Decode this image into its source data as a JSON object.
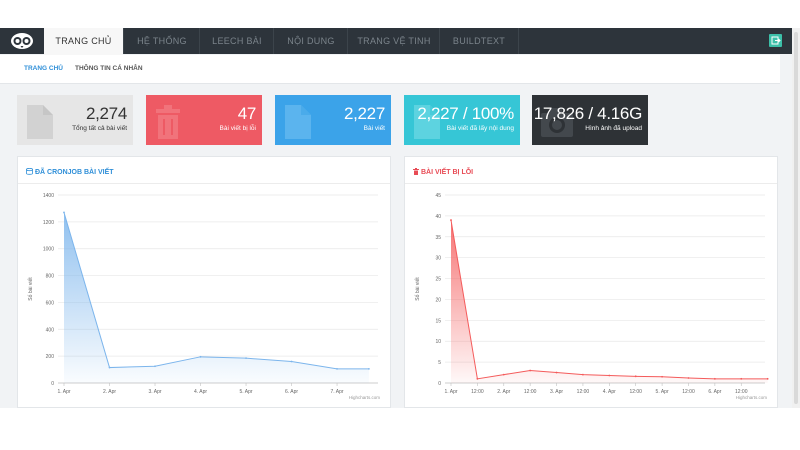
{
  "nav": {
    "tabs": [
      {
        "label": "TRANG CHỦ",
        "active": true
      },
      {
        "label": "HỆ THỐNG",
        "active": false
      },
      {
        "label": "LEECH BÀI",
        "active": false
      },
      {
        "label": "NỘI DUNG",
        "active": false
      },
      {
        "label": "TRANG VỆ TINH",
        "active": false
      },
      {
        "label": "BUILDTEXT",
        "active": false
      }
    ],
    "exit_icon": "logout-icon",
    "accent": "#3cbfa8"
  },
  "subnav": {
    "tabs": [
      {
        "label": "TRANG CHỦ",
        "active": true
      },
      {
        "label": "THÔNG TIN CÁ NHÂN",
        "active": false
      }
    ]
  },
  "stats": [
    {
      "value": "2,274",
      "label": "Tổng tất cả bài viết",
      "color": "#e6e6e6",
      "icon": "document-icon"
    },
    {
      "value": "47",
      "label": "Bài viết bị lỗi",
      "color": "#ee5a64",
      "icon": "trash-icon"
    },
    {
      "value": "2,227",
      "label": "Bài viết",
      "color": "#3ba3e9",
      "icon": "document-icon"
    },
    {
      "value": "2,227 / 100%",
      "label": "Bài viết đã lấy nội dung",
      "color": "#36c6d6",
      "icon": "document-icon"
    },
    {
      "value": "17,826 / 4.16G",
      "label": "Hình ảnh đã upload",
      "color": "#2e3236",
      "icon": "camera-icon"
    }
  ],
  "panels": {
    "cron_title": "ĐÃ CRONJOB BÀI VIẾT",
    "error_title": "BÀI VIẾT BỊ LỖI",
    "credit": "Highcharts.com"
  },
  "chart_data": [
    {
      "type": "area",
      "title": "ĐÃ CRONJOB BÀI VIẾT",
      "ylabel": "Số bài viết",
      "xlabel": "",
      "ylim": [
        0,
        1400
      ],
      "yticks": [
        0,
        200,
        400,
        600,
        800,
        1000,
        1200,
        1400
      ],
      "x_tick_labels": [
        "1. Apr",
        "2. Apr",
        "3. Apr",
        "4. Apr",
        "5. Apr",
        "6. Apr",
        "7. Apr"
      ],
      "x": [
        0,
        1,
        2,
        3,
        4,
        5,
        6,
        6.7
      ],
      "values": [
        1270,
        115,
        125,
        195,
        185,
        160,
        105,
        105
      ],
      "color": "#7cb5ec"
    },
    {
      "type": "area",
      "title": "BÀI VIẾT BỊ LỖI",
      "ylabel": "Số bài viết",
      "xlabel": "",
      "ylim": [
        0,
        45
      ],
      "yticks": [
        0,
        5,
        10,
        15,
        20,
        25,
        30,
        35,
        40,
        45
      ],
      "x_tick_labels": [
        "1. Apr",
        "12:00",
        "2. Apr",
        "12:00",
        "3. Apr",
        "12:00",
        "4. Apr",
        "12:00",
        "5. Apr",
        "12:00",
        "6. Apr",
        "12:00"
      ],
      "x": [
        0,
        1,
        2,
        3,
        4,
        5,
        6,
        7,
        8,
        9,
        10,
        11,
        12
      ],
      "values": [
        39,
        1,
        2,
        3,
        2.5,
        2,
        1.8,
        1.6,
        1.5,
        1.2,
        1,
        1,
        1
      ],
      "color": "#f45b5b"
    }
  ]
}
